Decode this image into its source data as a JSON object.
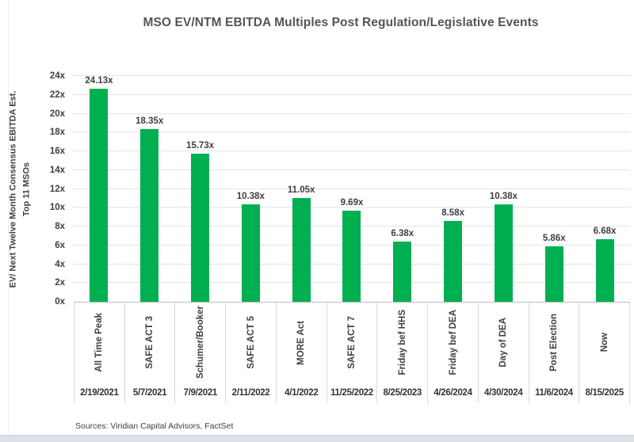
{
  "chart_data": {
    "type": "bar",
    "title": "MSO EV/NTM EBITDA Multiples Post Regulation/Legislative Events",
    "ylabel": "EV/ Next Twelve Month Consensus EBITDA Est.",
    "ylabel_sub": "Top 11 MSOs",
    "ylim": [
      0,
      24
    ],
    "ytick_step": 2,
    "ytick_suffix": "x",
    "yticks": [
      "0x",
      "2x",
      "4x",
      "6x",
      "8x",
      "10x",
      "12x",
      "14x",
      "16x",
      "18x",
      "20x",
      "22x",
      "24x"
    ],
    "grid": "horizontal-dotted",
    "legend": "none",
    "categories": [
      "All Time Peak",
      "SAFE ACT 3",
      "Schumer/Booker",
      "SAFE ACT 5",
      "MORE Act",
      "SAFE ACT 7",
      "Friday bef HHS",
      "Friday bef DEA",
      "Day of DEA",
      "Post Election",
      "Now"
    ],
    "dates": [
      "2/19/2021",
      "5/7/2021",
      "7/9/2021",
      "2/11/2022",
      "4/1/2022",
      "11/25/2022",
      "8/25/2023",
      "4/26/2024",
      "4/30/2024",
      "11/6/2024",
      "8/15/2025"
    ],
    "values": [
      24.13,
      18.35,
      15.73,
      10.38,
      11.05,
      9.69,
      6.38,
      8.58,
      10.38,
      5.86,
      6.68
    ],
    "value_labels": [
      "24.13x",
      "18.35x",
      "15.73x",
      "10.38x",
      "11.05x",
      "9.69x",
      "6.38x",
      "8.58x",
      "10.38x",
      "5.86x",
      "6.68x"
    ]
  },
  "footer": {
    "source": "Sources: Viridian Capital Advisors, FactSet"
  },
  "colors": {
    "bar": "#00B050",
    "text": "#404040",
    "title": "#555555",
    "gridline": "#c9c9c9",
    "separator": "#d9d9d9",
    "baseline": "#bfbfbf",
    "bottom_strip": "#dde1e7"
  }
}
